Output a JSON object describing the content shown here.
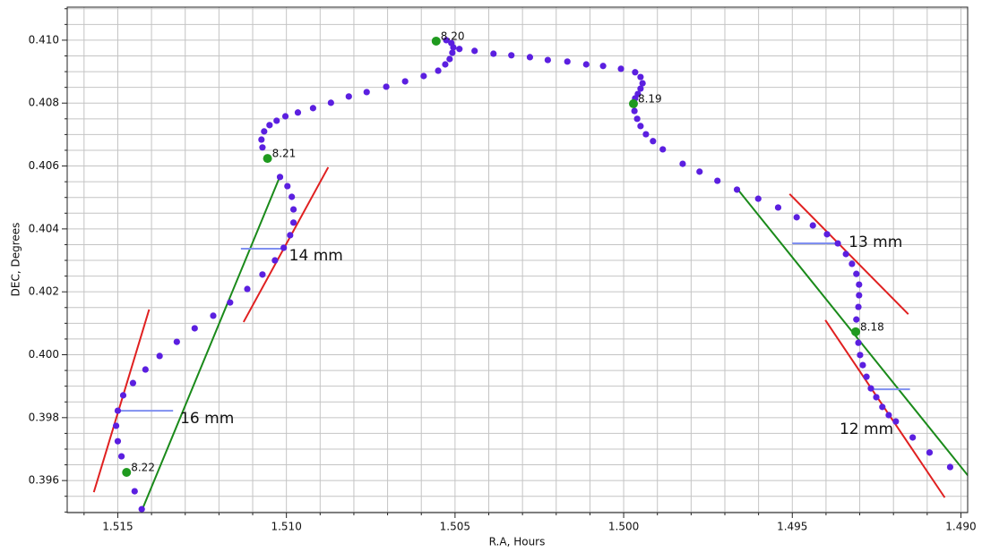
{
  "chart_data": {
    "type": "scatter",
    "x_label": "R.A, Hours",
    "y_label": "DEC, Degrees",
    "xlim": [
      1.5165,
      1.4898
    ],
    "ylim": [
      0.39498,
      0.41105
    ],
    "xticks": [
      1.515,
      {
        "value": 1.51,
        "label": "1.510"
      },
      1.505,
      {
        "value": 1.5,
        "label": "1.500"
      },
      1.495,
      {
        "value": 1.49,
        "label": "1.490"
      }
    ],
    "yticks": [
      0.396,
      0.398,
      {
        "value": 0.4,
        "label": "0.400"
      },
      0.402,
      0.404,
      0.406,
      0.408,
      {
        "value": 0.41,
        "label": "0.410"
      }
    ],
    "grid": true,
    "series": [
      {
        "color": "#5b1fe0",
        "x": [
          1.51429,
          1.5145,
          1.51489,
          1.515,
          1.51505,
          1.515,
          1.51484,
          1.51455,
          1.51418,
          1.51376,
          1.51325,
          1.51272,
          1.51217,
          1.51167,
          1.51116,
          1.51071,
          1.51034,
          1.51008,
          1.50989,
          1.50979,
          1.50979,
          1.50984,
          1.50997,
          1.51019,
          1.51071,
          1.51074,
          1.51066,
          1.5105,
          1.51029,
          1.51003,
          1.50966,
          1.50921,
          1.50868,
          1.50815,
          1.50762,
          1.50704,
          1.50648,
          1.50593,
          1.5055,
          1.50529,
          1.50516,
          1.50508,
          1.50505,
          1.50511,
          1.50526,
          1.50487,
          1.50442,
          1.50386,
          1.50333,
          1.50278,
          1.50225,
          1.50167,
          1.50111,
          1.50061,
          1.50008,
          1.49966,
          1.4995,
          1.49944,
          1.4995,
          1.49958,
          1.49966,
          1.49968,
          1.4996,
          1.4995,
          1.49934,
          1.49913,
          1.49884,
          1.49825,
          1.49775,
          1.49722,
          1.49664,
          1.49601,
          1.49542,
          1.49487,
          1.49439,
          1.49397,
          1.49365,
          1.49341,
          1.49323,
          1.4931,
          1.49302,
          1.49302,
          1.49304,
          1.4931,
          1.49304,
          1.49299,
          1.49291,
          1.4928,
          1.49267,
          1.49251,
          1.49233,
          1.49214,
          1.49193,
          1.49143,
          1.49093,
          1.49032
        ],
        "y": [
          0.39509,
          0.39566,
          0.39677,
          0.39725,
          0.39774,
          0.39822,
          0.39871,
          0.3991,
          0.39953,
          0.39996,
          0.40041,
          0.40084,
          0.40124,
          0.40166,
          0.40209,
          0.40255,
          0.403,
          0.4034,
          0.4038,
          0.4042,
          0.40462,
          0.40502,
          0.40536,
          0.40565,
          0.40659,
          0.40684,
          0.4071,
          0.4073,
          0.40744,
          0.40758,
          0.4077,
          0.40784,
          0.40801,
          0.40821,
          0.40835,
          0.40852,
          0.40869,
          0.40886,
          0.40903,
          0.40923,
          0.4094,
          0.4096,
          0.40977,
          0.40991,
          0.41,
          0.40972,
          0.40966,
          0.40957,
          0.40952,
          0.40946,
          0.40937,
          0.40932,
          0.40923,
          0.40918,
          0.40909,
          0.40898,
          0.40883,
          0.40863,
          0.40846,
          0.40829,
          0.40815,
          0.40775,
          0.4075,
          0.40727,
          0.40701,
          0.40679,
          0.40653,
          0.40607,
          0.40582,
          0.40553,
          0.40525,
          0.40496,
          0.40468,
          0.40437,
          0.40411,
          0.40383,
          0.40354,
          0.4032,
          0.40289,
          0.40257,
          0.40223,
          0.40189,
          0.40152,
          0.40112,
          0.40038,
          0.39999,
          0.39967,
          0.3993,
          0.39893,
          0.39865,
          0.39834,
          0.39808,
          0.39788,
          0.39737,
          0.39689,
          0.39643
        ]
      }
    ],
    "marked_points": {
      "color": "#1f9a1f",
      "x": [
        1.51474,
        1.51056,
        1.50556,
        1.49971,
        1.49312
      ],
      "y": [
        0.39626,
        0.40624,
        0.40997,
        0.40798,
        0.40073
      ],
      "labels": [
        "8.22",
        "8.21",
        "8.20",
        "8.19",
        "8.18"
      ]
    },
    "lines": [
      {
        "color": "#e02020",
        "x": [
          1.51571,
          1.51407
        ],
        "y": [
          0.39563,
          0.40144
        ]
      },
      {
        "color": "#e02020",
        "x": [
          1.51127,
          1.50876
        ],
        "y": [
          0.40104,
          0.40596
        ]
      },
      {
        "color": "#e02020",
        "x": [
          1.49508,
          1.49156
        ],
        "y": [
          0.40511,
          0.40129
        ]
      },
      {
        "color": "#e02020",
        "x": [
          1.49402,
          1.49048
        ],
        "y": [
          0.4011,
          0.39546
        ]
      },
      {
        "color": "#1a8a1a",
        "x": [
          1.51429,
          1.51021
        ],
        "y": [
          0.39504,
          0.40562
        ]
      },
      {
        "color": "#1a8a1a",
        "x": [
          1.49659,
          1.48974
        ],
        "y": [
          0.40522,
          0.39609
        ]
      },
      {
        "color": "#7f8ff0",
        "x": [
          1.51492,
          1.51336
        ],
        "y": [
          0.39822,
          0.39822
        ]
      },
      {
        "color": "#7f8ff0",
        "x": [
          1.51135,
          1.51003
        ],
        "y": [
          0.40337,
          0.40337
        ]
      },
      {
        "color": "#7f8ff0",
        "x": [
          1.495,
          1.49357
        ],
        "y": [
          0.40354,
          0.40354
        ]
      },
      {
        "color": "#7f8ff0",
        "x": [
          1.49265,
          1.49151
        ],
        "y": [
          0.3989,
          0.3989
        ]
      }
    ],
    "annotations": [
      {
        "text": "16 mm",
        "x": 1.51315,
        "y": 0.39797
      },
      {
        "text": "14 mm",
        "x": 1.50992,
        "y": 0.40314
      },
      {
        "text": "13 mm",
        "x": 1.49333,
        "y": 0.40357
      },
      {
        "text": "12 mm",
        "x": 1.4936,
        "y": 0.39762
      }
    ]
  }
}
